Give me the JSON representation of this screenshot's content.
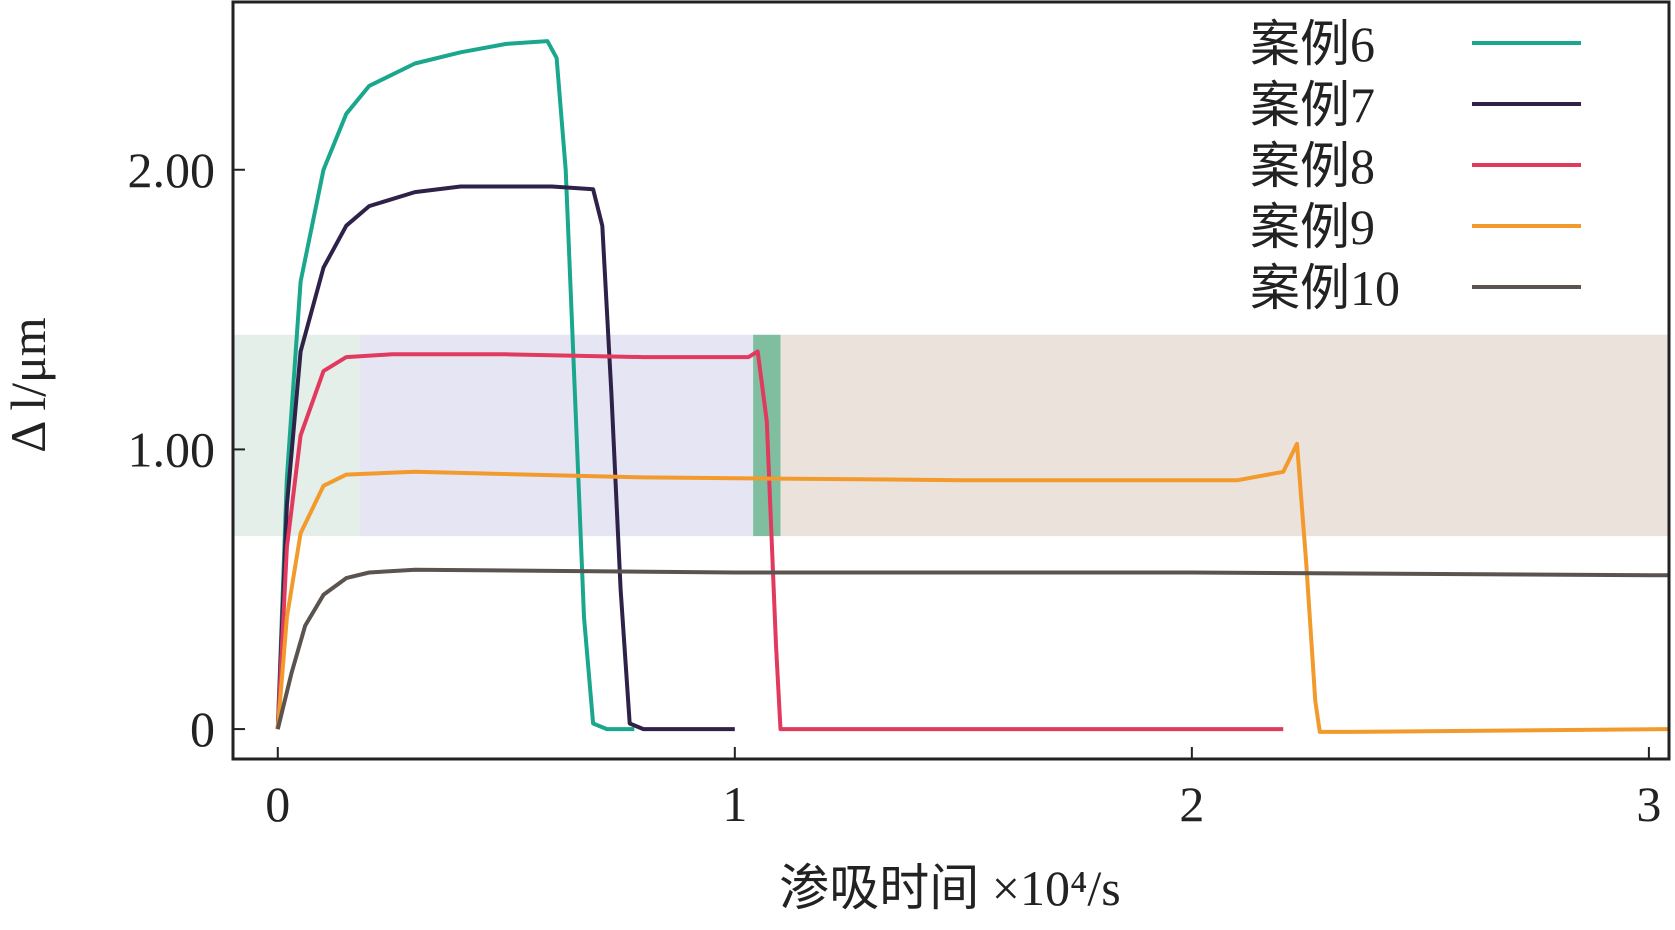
{
  "chart_data": {
    "type": "line",
    "xlabel": "渗吸时间 ×10⁴/s",
    "ylabel": "Δ l/μm",
    "xlim": [
      -0.098,
      3.044
    ],
    "ylim": [
      -0.107,
      2.607
    ],
    "xticks": [
      0,
      1,
      2,
      3
    ],
    "yticks": [
      0,
      {
        "value": 1,
        "label": "1.00"
      },
      {
        "value": 2,
        "label": "2.00"
      }
    ],
    "legend": "upper right",
    "shaded_regions": [
      {
        "x": [
          -0.098,
          0.18
        ],
        "y": [
          0.69,
          1.41
        ],
        "color": "#e3efe8"
      },
      {
        "x": [
          0.18,
          1.04
        ],
        "y": [
          0.69,
          1.41
        ],
        "color": "#e6e5f3"
      },
      {
        "x": [
          1.04,
          1.1
        ],
        "y": [
          0.69,
          1.41
        ],
        "color": "#7fbf9f"
      },
      {
        "x": [
          1.1,
          3.044
        ],
        "y": [
          0.69,
          1.41
        ],
        "color": "#ebe2dc"
      }
    ],
    "series": [
      {
        "name": "案例6",
        "color": "#1aa78d",
        "x": [
          0,
          0.02,
          0.05,
          0.1,
          0.15,
          0.2,
          0.3,
          0.4,
          0.5,
          0.59,
          0.61,
          0.63,
          0.65,
          0.67,
          0.69,
          0.72,
          0.78
        ],
        "values": [
          0,
          0.9,
          1.6,
          2.0,
          2.2,
          2.3,
          2.38,
          2.42,
          2.45,
          2.46,
          2.4,
          2.0,
          1.2,
          0.4,
          0.02,
          0,
          0
        ]
      },
      {
        "name": "案例7",
        "color": "#2e2248",
        "x": [
          0,
          0.02,
          0.05,
          0.1,
          0.15,
          0.2,
          0.3,
          0.4,
          0.5,
          0.6,
          0.69,
          0.71,
          0.73,
          0.75,
          0.77,
          0.8,
          1.0
        ],
        "values": [
          0,
          0.8,
          1.35,
          1.65,
          1.8,
          1.87,
          1.92,
          1.94,
          1.94,
          1.94,
          1.93,
          1.8,
          1.2,
          0.5,
          0.02,
          0,
          0
        ]
      },
      {
        "name": "案例8",
        "color": "#e2395f",
        "x": [
          0,
          0.02,
          0.05,
          0.1,
          0.15,
          0.25,
          0.5,
          0.8,
          1.03,
          1.05,
          1.07,
          1.09,
          1.1,
          1.15,
          2.2
        ],
        "values": [
          0,
          0.65,
          1.05,
          1.28,
          1.33,
          1.34,
          1.34,
          1.33,
          1.33,
          1.35,
          1.1,
          0.3,
          0,
          0,
          0
        ]
      },
      {
        "name": "案例9",
        "color": "#f39a2c",
        "x": [
          0,
          0.02,
          0.05,
          0.1,
          0.15,
          0.3,
          0.8,
          1.5,
          2.1,
          2.2,
          2.23,
          2.25,
          2.27,
          2.28,
          2.35,
          3.044
        ],
        "values": [
          0,
          0.4,
          0.7,
          0.87,
          0.91,
          0.92,
          0.9,
          0.89,
          0.89,
          0.92,
          1.02,
          0.6,
          0.1,
          -0.01,
          -0.01,
          0
        ]
      },
      {
        "name": "案例10",
        "color": "#5b534f",
        "x": [
          0,
          0.03,
          0.06,
          0.1,
          0.15,
          0.2,
          0.3,
          1.0,
          2.0,
          3.044
        ],
        "values": [
          0,
          0.2,
          0.37,
          0.48,
          0.54,
          0.56,
          0.57,
          0.56,
          0.56,
          0.55
        ]
      }
    ]
  }
}
